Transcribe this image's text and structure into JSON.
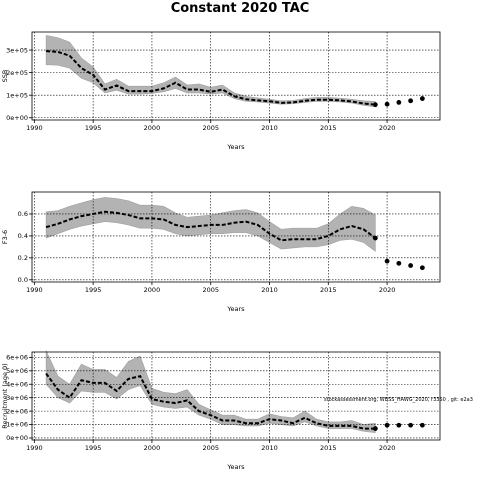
{
  "figure": {
    "title": "Constant 2020 TAC",
    "note": "stockassessment.org, WBSS_HAWG_2020, r3350 , git: e2a3"
  },
  "chart_data": [
    {
      "type": "line",
      "name": "ssb",
      "ylabel": "SSB",
      "xlabel": "Years",
      "xlim": [
        1989.8,
        2024.5
      ],
      "xticks": [
        1990,
        1995,
        2000,
        2005,
        2010,
        2015,
        2020
      ],
      "ylim": [
        -10000,
        380000
      ],
      "yticks": [
        0,
        100000,
        200000,
        300000
      ],
      "ytick_labels": [
        "0e+00",
        "1e+05",
        "2e+05",
        "3e+05"
      ],
      "grid": true,
      "years": [
        1991,
        1992,
        1993,
        1994,
        1995,
        1996,
        1997,
        1998,
        1999,
        2000,
        2001,
        2002,
        2003,
        2004,
        2005,
        2006,
        2007,
        2008,
        2009,
        2010,
        2011,
        2012,
        2013,
        2014,
        2015,
        2016,
        2017,
        2018,
        2019
      ],
      "estimate": [
        295000,
        292000,
        275000,
        220000,
        190000,
        125000,
        143000,
        118000,
        118000,
        118000,
        130000,
        155000,
        125000,
        125000,
        115000,
        125000,
        95000,
        82000,
        77000,
        73000,
        66000,
        68000,
        75000,
        80000,
        80000,
        77000,
        72000,
        63000,
        58000
      ],
      "lower": [
        235000,
        233000,
        220000,
        175000,
        155000,
        110000,
        122000,
        105000,
        105000,
        108000,
        115000,
        130000,
        110000,
        110000,
        105000,
        110000,
        85000,
        73000,
        70000,
        65000,
        60000,
        62000,
        68000,
        73000,
        72000,
        70000,
        65000,
        55000,
        48000
      ],
      "upper": [
        365000,
        355000,
        335000,
        265000,
        225000,
        150000,
        170000,
        140000,
        140000,
        140000,
        155000,
        180000,
        145000,
        150000,
        135000,
        145000,
        110000,
        95000,
        88000,
        82000,
        75000,
        77000,
        85000,
        90000,
        90000,
        87000,
        82000,
        75000,
        72000
      ],
      "forecast_years": [
        2019,
        2020,
        2021,
        2022,
        2023
      ],
      "forecast_values": [
        58000,
        60000,
        68000,
        75000,
        85000
      ]
    },
    {
      "type": "line",
      "name": "fbar",
      "ylabel": "F3-6",
      "xlabel": "Years",
      "xlim": [
        1989.8,
        2024.5
      ],
      "xticks": [
        1990,
        1995,
        2000,
        2005,
        2010,
        2015,
        2020
      ],
      "ylim": [
        -0.02,
        0.8
      ],
      "yticks": [
        0.0,
        0.2,
        0.4,
        0.6
      ],
      "ytick_labels": [
        "0.0",
        "0.2",
        "0.4",
        "0.6"
      ],
      "grid": true,
      "years": [
        1991,
        1992,
        1993,
        1994,
        1995,
        1996,
        1997,
        1998,
        1999,
        2000,
        2001,
        2002,
        2003,
        2004,
        2005,
        2006,
        2007,
        2008,
        2009,
        2010,
        2011,
        2012,
        2013,
        2014,
        2015,
        2016,
        2017,
        2018,
        2019
      ],
      "estimate": [
        0.48,
        0.51,
        0.55,
        0.58,
        0.6,
        0.62,
        0.61,
        0.59,
        0.56,
        0.56,
        0.55,
        0.5,
        0.48,
        0.49,
        0.5,
        0.5,
        0.52,
        0.53,
        0.5,
        0.42,
        0.36,
        0.37,
        0.37,
        0.37,
        0.4,
        0.46,
        0.49,
        0.46,
        0.38
      ],
      "lower": [
        0.38,
        0.42,
        0.46,
        0.49,
        0.51,
        0.53,
        0.52,
        0.5,
        0.47,
        0.47,
        0.46,
        0.42,
        0.4,
        0.41,
        0.42,
        0.42,
        0.43,
        0.43,
        0.4,
        0.34,
        0.28,
        0.29,
        0.3,
        0.3,
        0.32,
        0.36,
        0.37,
        0.34,
        0.26
      ],
      "upper": [
        0.62,
        0.63,
        0.67,
        0.7,
        0.73,
        0.75,
        0.74,
        0.72,
        0.68,
        0.68,
        0.67,
        0.61,
        0.57,
        0.58,
        0.59,
        0.61,
        0.63,
        0.64,
        0.61,
        0.53,
        0.46,
        0.47,
        0.47,
        0.47,
        0.51,
        0.6,
        0.67,
        0.65,
        0.59
      ],
      "forecast_years": [
        2019,
        2020,
        2021,
        2022,
        2023
      ],
      "forecast_values": [
        0.38,
        0.17,
        0.15,
        0.13,
        0.11
      ]
    },
    {
      "type": "line",
      "name": "recruitment",
      "ylabel": "Recruitment (age 0)",
      "xlabel": "Years",
      "xlim": [
        1989.8,
        2024.5
      ],
      "xticks": [
        1990,
        1995,
        2000,
        2005,
        2010,
        2015,
        2020
      ],
      "ylim": [
        -150000,
        6400000
      ],
      "yticks": [
        0,
        1000000,
        2000000,
        3000000,
        4000000,
        5000000,
        6000000
      ],
      "ytick_labels": [
        "0e+00",
        "1e+06",
        "2e+06",
        "3e+06",
        "4e+06",
        "5e+06",
        "6e+06"
      ],
      "grid": true,
      "years": [
        1991,
        1992,
        1993,
        1994,
        1995,
        1996,
        1997,
        1998,
        1999,
        2000,
        2001,
        2002,
        2003,
        2004,
        2005,
        2006,
        2007,
        2008,
        2009,
        2010,
        2011,
        2012,
        2013,
        2014,
        2015,
        2016,
        2017,
        2018,
        2019
      ],
      "estimate": [
        4800000,
        3600000,
        3000000,
        4300000,
        4100000,
        4100000,
        3500000,
        4400000,
        4600000,
        2900000,
        2700000,
        2600000,
        2800000,
        2000000,
        1700000,
        1300000,
        1300000,
        1100000,
        1100000,
        1400000,
        1300000,
        1100000,
        1500000,
        1100000,
        900000,
        900000,
        900000,
        700000,
        700000
      ],
      "lower": [
        4000000,
        3000000,
        2600000,
        3500000,
        3400000,
        3400000,
        2900000,
        3600000,
        3900000,
        2500000,
        2300000,
        2200000,
        2300000,
        1700000,
        1400000,
        1000000,
        1000000,
        900000,
        900000,
        1100000,
        1000000,
        900000,
        1200000,
        900000,
        700000,
        700000,
        700000,
        500000,
        400000
      ],
      "upper": [
        6500000,
        4600000,
        4000000,
        5500000,
        5100000,
        5100000,
        4500000,
        5700000,
        6100000,
        3700000,
        3400000,
        3300000,
        3600000,
        2500000,
        2100000,
        1700000,
        1700000,
        1400000,
        1400000,
        1800000,
        1600000,
        1500000,
        2000000,
        1400000,
        1200000,
        1200000,
        1300000,
        1000000,
        1100000
      ],
      "forecast_years": [
        2019,
        2020,
        2021,
        2022,
        2023
      ],
      "forecast_values": [
        700000,
        950000,
        950000,
        950000,
        950000
      ]
    }
  ]
}
